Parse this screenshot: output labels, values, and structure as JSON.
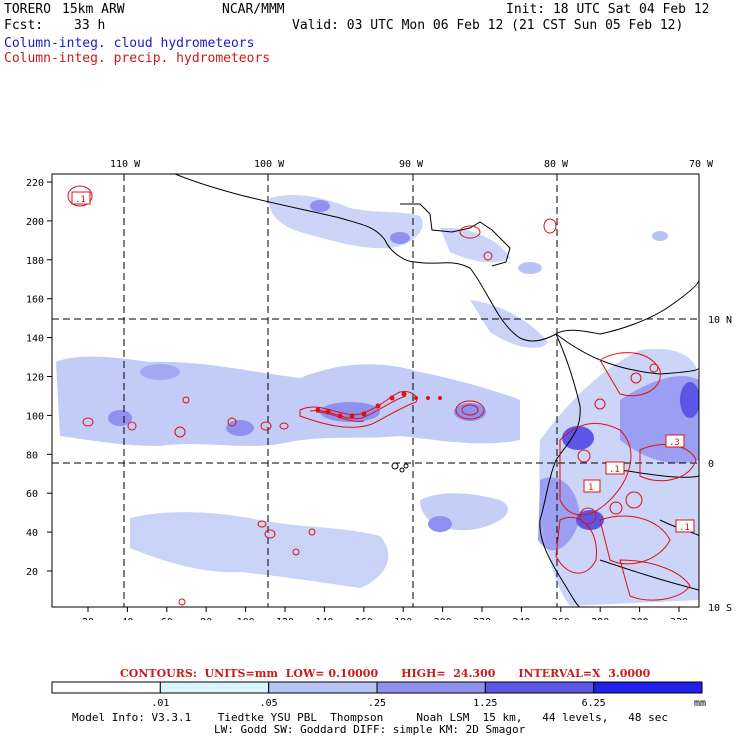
{
  "header": {
    "model": "TORERO",
    "resolution": "15km ARW",
    "center": "NCAR/MMM",
    "init": "Init: 18 UTC Sat 04 Feb 12",
    "fcst_label": "Fcst:",
    "fcst_value": "33 h",
    "valid": "Valid: 03 UTC Mon 06 Feb 12 (21 CST Sun 05 Feb 12)",
    "line_cloud": "Column-integ. cloud hydrometeors",
    "line_precip": "Column-integ. precip. hydrometeors"
  },
  "map": {
    "lon_labels": [
      "110 W",
      "100 W",
      "90 W",
      "80 W",
      "70 W"
    ],
    "lat_labels": [
      "10 N",
      "0",
      "10 S"
    ],
    "y_ticks": [
      "220",
      "200",
      "180",
      "160",
      "140",
      "120",
      "100",
      "80",
      "60",
      "40",
      "20"
    ],
    "x_ticks": [
      "20",
      "40",
      "60",
      "80",
      "100",
      "120",
      "140",
      "160",
      "180",
      "200",
      "220",
      "240",
      "260",
      "280",
      "300",
      "320"
    ],
    "contour_labels": [
      ".1",
      ".3",
      "1",
      ".1",
      ".1"
    ]
  },
  "contour_info": "CONTOURS:  UNITS=mm  LOW= 0.10000      HIGH=  24.300      INTERVAL=X  3.0000",
  "colorbar": {
    "labels": [
      ".01",
      ".05",
      ".25",
      "1.25",
      "6.25"
    ],
    "units": "mm",
    "colors": [
      "#ffffff",
      "#d8f6fb",
      "#b7c3f4",
      "#8f90ef",
      "#5d55e6",
      "#2020e8"
    ]
  },
  "footer": {
    "line1": "Model Info: V3.3.1    Tiedtke YSU PBL  Thompson     Noah LSM  15 km,   44 levels,   48 sec",
    "line2": "LW: Godd SW: Goddard DIFF: simple KM: 2D Smagor"
  }
}
